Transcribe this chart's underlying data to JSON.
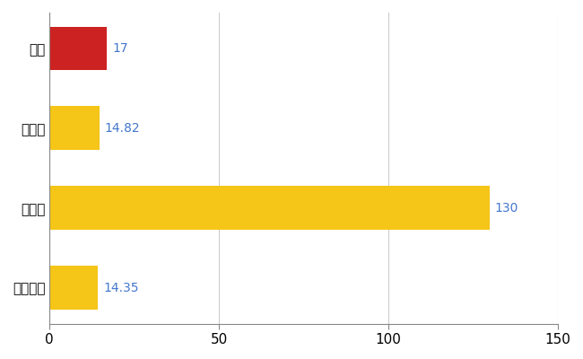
{
  "categories": [
    "全国平均",
    "県最大",
    "県平均",
    "南区"
  ],
  "values": [
    14.35,
    130,
    14.82,
    17
  ],
  "bar_colors": [
    "#f5c518",
    "#f5c518",
    "#f5c518",
    "#cc2222"
  ],
  "value_labels": [
    "14.35",
    "130",
    "14.82",
    "17"
  ],
  "ytick_labels": [
    "全国平均",
    "県最大",
    "県平均",
    "南区"
  ],
  "label_color": "#4477cc",
  "xlim": [
    0,
    150
  ],
  "xticks": [
    0,
    50,
    100,
    150
  ],
  "grid_color": "#cccccc",
  "background_color": "#ffffff",
  "bar_height": 0.55,
  "label_fontsize": 10,
  "tick_fontsize": 11
}
